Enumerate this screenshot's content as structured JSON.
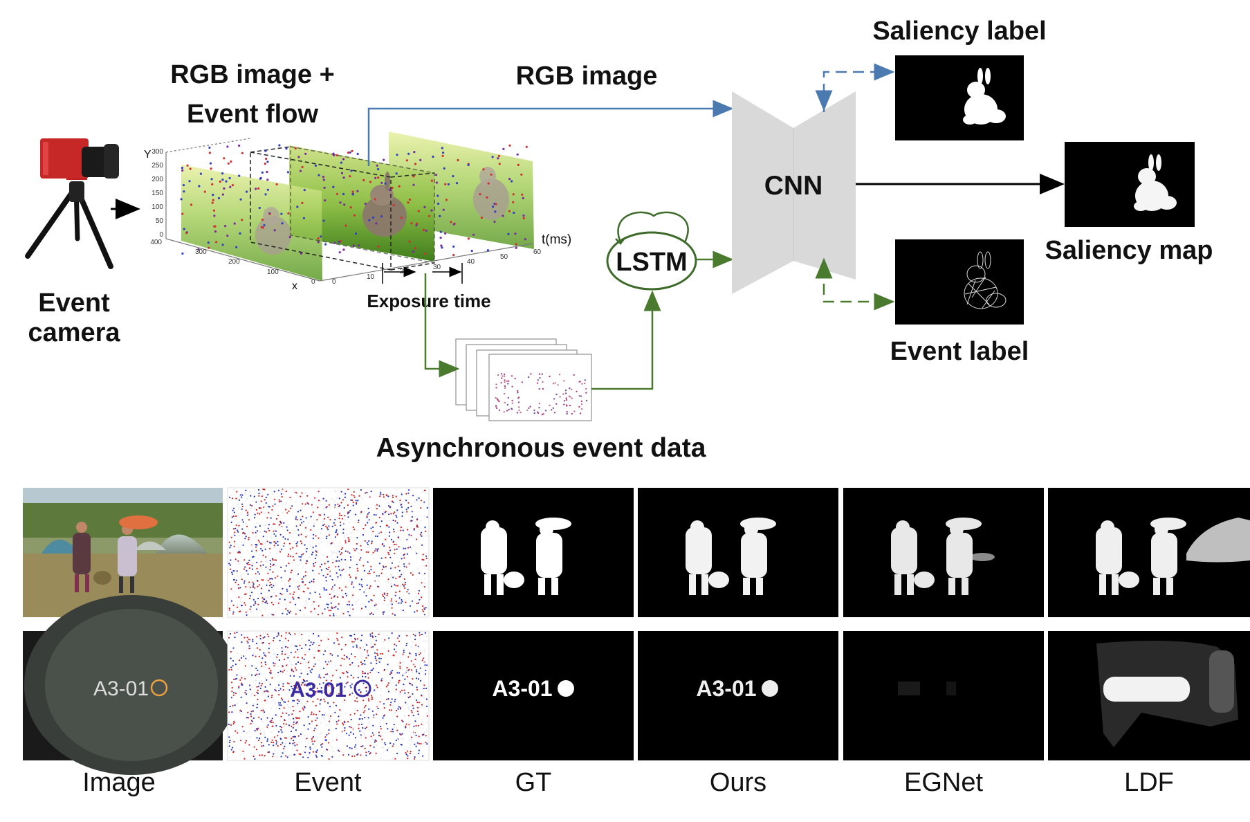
{
  "diagram": {
    "event_camera_label_line1": "Event",
    "event_camera_label_line2": "camera",
    "rgb_event_label_line1": "RGB image +",
    "rgb_event_label_line2": "Event flow",
    "rgb_image_label": "RGB image",
    "cnn_label": "CNN",
    "lstm_label": "LSTM",
    "saliency_label": "Saliency label",
    "saliency_map_label": "Saliency map",
    "event_label": "Event label",
    "exposure_time_label": "Exposure time",
    "async_event_label": "Asynchronous event data",
    "axis": {
      "y_label": "Y",
      "y_ticks": [
        "300",
        "250",
        "200",
        "150",
        "100",
        "50",
        "0"
      ],
      "y_bottom": "400",
      "x_label": "x",
      "x_ticks": [
        "300",
        "200",
        "100",
        "0"
      ],
      "t_label": "t(ms)",
      "t_ticks": [
        "0",
        "10",
        "20",
        "30",
        "40",
        "50",
        "60"
      ]
    },
    "colors": {
      "rgb_arrow": "#4a7ab0",
      "event_arrow": "#4a7a2e",
      "cnn_fill": "#d9d9d9",
      "lstm_stroke": "#3d6b2a"
    }
  },
  "comparison": {
    "columns": [
      "Image",
      "Event",
      "GT",
      "Ours",
      "EGNet",
      "LDF"
    ],
    "sign_text": "A3-01"
  }
}
